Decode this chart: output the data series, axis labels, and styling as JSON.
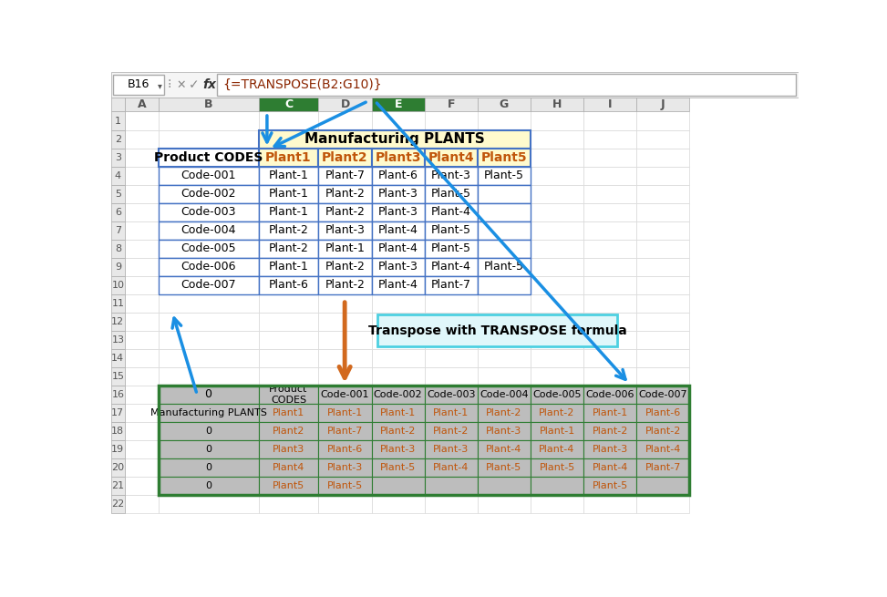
{
  "formula_bar_cell": "B16",
  "formula_bar_text": "{=TRANSPOSE(B2:G10)}",
  "top_table_header": "Manufacturing PLANTS",
  "top_table_col_labels": [
    "Product CODES",
    "Plant1",
    "Plant2",
    "Plant3",
    "Plant4",
    "Plant5"
  ],
  "top_table_data": [
    [
      "Code-001",
      "Plant-1",
      "Plant-7",
      "Plant-6",
      "Plant-3",
      "Plant-5"
    ],
    [
      "Code-002",
      "Plant-1",
      "Plant-2",
      "Plant-3",
      "Plant-5",
      ""
    ],
    [
      "Code-003",
      "Plant-1",
      "Plant-2",
      "Plant-3",
      "Plant-4",
      ""
    ],
    [
      "Code-004",
      "Plant-2",
      "Plant-3",
      "Plant-4",
      "Plant-5",
      ""
    ],
    [
      "Code-005",
      "Plant-2",
      "Plant-1",
      "Plant-4",
      "Plant-5",
      ""
    ],
    [
      "Code-006",
      "Plant-1",
      "Plant-2",
      "Plant-3",
      "Plant-4",
      "Plant-5"
    ],
    [
      "Code-007",
      "Plant-6",
      "Plant-2",
      "Plant-4",
      "Plant-7",
      ""
    ]
  ],
  "bottom_row16_b": "0",
  "bottom_row16_c": "Product\nCODES",
  "bottom_row16_codes": [
    "Code-001",
    "Code-002",
    "Code-003",
    "Code-004",
    "Code-005",
    "Code-006",
    "Code-007"
  ],
  "bottom_table_data": [
    [
      "Manufacturing PLANTS",
      "Plant1",
      "Plant-1",
      "Plant-1",
      "Plant-1",
      "Plant-2",
      "Plant-2",
      "Plant-1",
      "Plant-6"
    ],
    [
      "0",
      "Plant2",
      "Plant-7",
      "Plant-2",
      "Plant-2",
      "Plant-3",
      "Plant-1",
      "Plant-2",
      "Plant-2"
    ],
    [
      "0",
      "Plant3",
      "Plant-6",
      "Plant-3",
      "Plant-3",
      "Plant-4",
      "Plant-4",
      "Plant-3",
      "Plant-4"
    ],
    [
      "0",
      "Plant4",
      "Plant-3",
      "Plant-5",
      "Plant-4",
      "Plant-5",
      "Plant-5",
      "Plant-4",
      "Plant-7"
    ],
    [
      "0",
      "Plant5",
      "Plant-5",
      "",
      "",
      "",
      "",
      "Plant-5",
      ""
    ]
  ],
  "annotation_text": "Transpose with TRANSPOSE formula",
  "header_bg": "#FFFACD",
  "top_table_border": "#4472C4",
  "bottom_table_border": "#2E7D32",
  "col_header_highlight": "#2E7D32",
  "col_label_color": "#C0550A",
  "grid_color": "#CCCCCC",
  "bottom_table_bg": "#BDBDBD",
  "annotation_bg": "#E0F7FA",
  "annotation_border": "#4DD0E1",
  "blue_arrow_color": "#1A8FE3",
  "orange_arrow_color": "#D2691E",
  "row_header_bg": "#E8E8E8",
  "col_header_bg": "#E8E8E8",
  "formula_bar_bg": "#F5F5F5"
}
